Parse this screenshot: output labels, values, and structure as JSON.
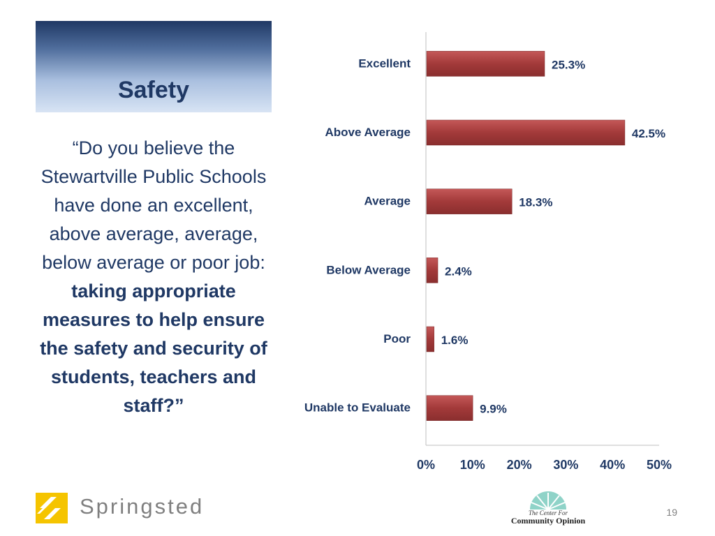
{
  "title": "Safety",
  "question": {
    "plain": "“Do you believe the Stewartville Public Schools have done an excellent, above average, average, below average or poor job: ",
    "bold": "taking appropriate measures to help ensure the safety and security of students, teachers and staff?”"
  },
  "chart_data": {
    "type": "bar",
    "orientation": "horizontal",
    "categories": [
      "Excellent",
      "Above Average",
      "Average",
      "Below Average",
      "Poor",
      "Unable to Evaluate"
    ],
    "values": [
      25.3,
      42.5,
      18.3,
      2.4,
      1.6,
      9.9
    ],
    "value_labels": [
      "25.3%",
      "42.5%",
      "18.3%",
      "2.4%",
      "1.6%",
      "9.9%"
    ],
    "xlim": [
      0,
      50
    ],
    "x_ticks": [
      0,
      10,
      20,
      30,
      40,
      50
    ],
    "x_tick_labels": [
      "0%",
      "10%",
      "20%",
      "30%",
      "40%",
      "50%"
    ],
    "grid": false,
    "bar_color": "#a33a3a"
  },
  "footer": {
    "brand": "Springsted",
    "partner_small": "The Center For",
    "partner_name": "Community Opinion",
    "page_number": "19"
  },
  "colors": {
    "title_text": "#1f3864",
    "logo_yellow": "#f5c400"
  }
}
